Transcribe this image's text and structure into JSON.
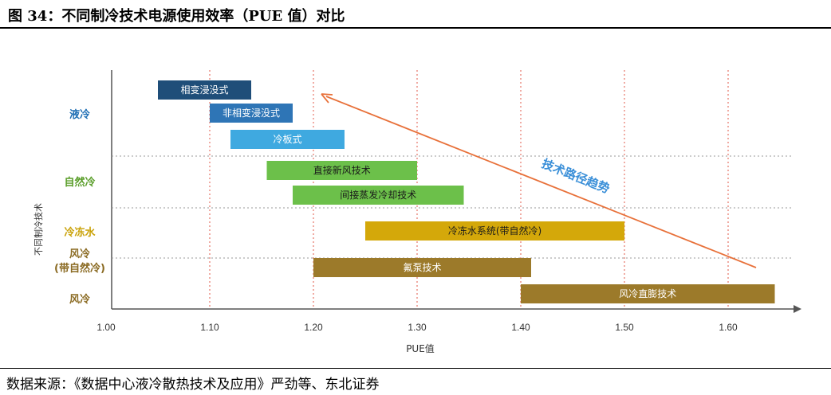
{
  "figure": {
    "title": "图 34：不同制冷技术电源使用效率（PUE 值）对比",
    "source": "数据来源：《数据中心液冷散热技术及应用》严劲等、东北证券"
  },
  "chart_data": {
    "type": "bar",
    "subtype": "range-bar (gantt)",
    "xlabel": "PUE值",
    "ylabel": "不同制冷技术",
    "xlim": [
      1.0,
      1.65
    ],
    "xticks": [
      "1.00",
      "1.10",
      "1.20",
      "1.30",
      "1.40",
      "1.50",
      "1.60"
    ],
    "grid": "vertical dotted red lines at ticks; horizontal dotted grey separators between groups",
    "groups": [
      {
        "label": "液冷",
        "items": [
          {
            "name": "相变浸没式",
            "start": 1.05,
            "end": 1.14,
            "color": "#1f4e79"
          },
          {
            "name": "非相变浸没式",
            "start": 1.1,
            "end": 1.18,
            "color": "#2e75b6"
          },
          {
            "name": "冷板式",
            "start": 1.12,
            "end": 1.23,
            "color": "#3fa9e0"
          }
        ]
      },
      {
        "label": "自然冷",
        "items": [
          {
            "name": "直接新风技术",
            "start": 1.155,
            "end": 1.3,
            "color": "#6cc04a"
          },
          {
            "name": "间接蒸发冷却技术",
            "start": 1.18,
            "end": 1.345,
            "color": "#6cc04a"
          }
        ]
      },
      {
        "label": "冷冻水",
        "items": [
          {
            "name": "冷冻水系统(带自然冷)",
            "start": 1.25,
            "end": 1.5,
            "color": "#d4a80a"
          }
        ]
      },
      {
        "label": "风冷\n(带自然冷)",
        "items": [
          {
            "name": "氟泵技术",
            "start": 1.2,
            "end": 1.41,
            "color": "#9c7a2a"
          }
        ]
      },
      {
        "label": "风冷",
        "items": [
          {
            "name": "风冷直膨技术",
            "start": 1.4,
            "end": 1.645,
            "color": "#9c7a2a"
          }
        ]
      }
    ],
    "annotation": {
      "text": "技术路径趋势",
      "color": "#3a8fd8",
      "arrow_color": "#e8713a",
      "arrow_from": [
        1.64,
        "风冷(带自然冷)"
      ],
      "arrow_to": [
        1.21,
        "相变浸没式"
      ]
    },
    "group_label_colors": {
      "液冷": "#1f6fb5",
      "自然冷": "#5a9e2a",
      "冷冻水": "#c9a106",
      "风冷\n(带自然冷)": "#8a6a22",
      "风冷": "#8a6a22"
    }
  }
}
